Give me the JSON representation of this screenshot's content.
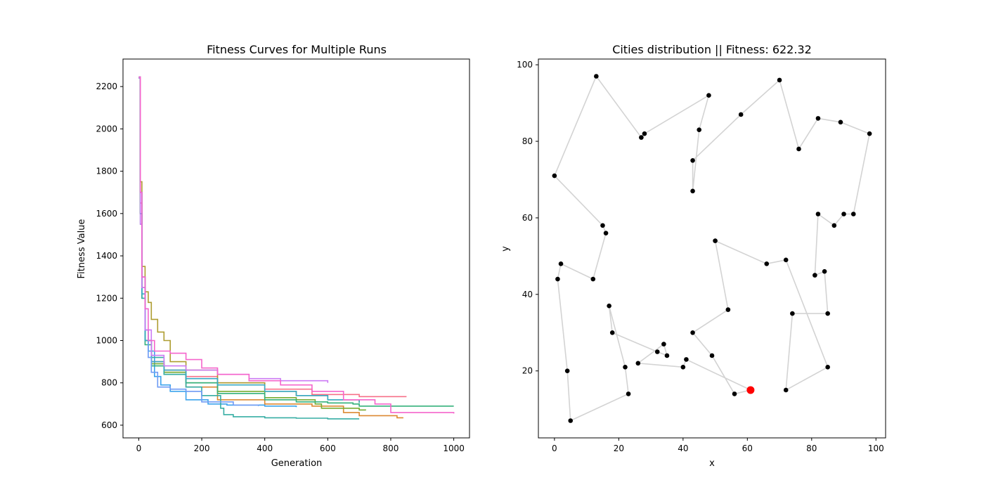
{
  "chart_data": [
    {
      "type": "line",
      "title": "Fitness Curves for Multiple Runs",
      "xlabel": "Generation",
      "ylabel": "Fitness Value",
      "xlim": [
        -50,
        1050
      ],
      "ylim": [
        540,
        2330
      ],
      "xticks": [
        0,
        200,
        400,
        600,
        800,
        1000
      ],
      "yticks": [
        600,
        800,
        1000,
        1200,
        1400,
        1600,
        1800,
        2000,
        2200
      ],
      "grid": false,
      "series": [
        {
          "color": "#3ba3ec",
          "x": [
            0,
            5,
            10,
            20,
            30,
            50,
            70,
            100,
            150,
            220,
            280,
            400,
            500
          ],
          "y": [
            2245,
            1700,
            1300,
            1050,
            950,
            830,
            790,
            760,
            720,
            700,
            695,
            690,
            685
          ]
        },
        {
          "color": "#f77189",
          "x": [
            0,
            5,
            10,
            20,
            40,
            80,
            150,
            250,
            400,
            550,
            700,
            850
          ],
          "y": [
            2240,
            1650,
            1250,
            1000,
            900,
            860,
            830,
            800,
            770,
            745,
            735,
            735
          ]
        },
        {
          "color": "#dc8932",
          "x": [
            0,
            5,
            10,
            20,
            40,
            80,
            150,
            250,
            400,
            550,
            650,
            700,
            820,
            840
          ],
          "y": [
            2240,
            1600,
            1300,
            1000,
            900,
            850,
            780,
            720,
            700,
            690,
            660,
            645,
            635,
            635
          ]
        },
        {
          "color": "#ae9d31",
          "x": [
            0,
            5,
            10,
            20,
            30,
            40,
            60,
            80,
            100,
            150,
            250,
            400,
            500,
            600,
            700
          ],
          "y": [
            2245,
            1750,
            1350,
            1230,
            1180,
            1100,
            1040,
            1000,
            900,
            860,
            800,
            760,
            740,
            720,
            705
          ]
        },
        {
          "color": "#77ab31",
          "x": [
            0,
            5,
            10,
            20,
            40,
            80,
            150,
            250,
            400,
            500,
            560,
            580,
            700,
            720
          ],
          "y": [
            2240,
            1600,
            1250,
            1000,
            890,
            850,
            800,
            760,
            730,
            720,
            700,
            680,
            672,
            670
          ]
        },
        {
          "color": "#33b07a",
          "x": [
            0,
            5,
            10,
            20,
            40,
            80,
            150,
            250,
            400,
            500,
            600,
            680,
            700,
            1000
          ],
          "y": [
            2240,
            1600,
            1200,
            980,
            880,
            840,
            800,
            750,
            720,
            710,
            705,
            700,
            690,
            690
          ]
        },
        {
          "color": "#36ada4",
          "x": [
            0,
            5,
            10,
            20,
            40,
            80,
            150,
            200,
            260,
            270,
            300,
            400,
            500,
            600,
            700
          ],
          "y": [
            2240,
            1550,
            1200,
            1000,
            920,
            840,
            780,
            740,
            680,
            650,
            640,
            635,
            633,
            630,
            630
          ]
        },
        {
          "color": "#38a9c5",
          "x": [
            0,
            5,
            10,
            20,
            40,
            80,
            150,
            250,
            400,
            500,
            600,
            700
          ],
          "y": [
            2240,
            1600,
            1220,
            1000,
            900,
            860,
            820,
            790,
            760,
            740,
            720,
            705
          ]
        },
        {
          "color": "#6e9bf4",
          "x": [
            0,
            5,
            10,
            20,
            30,
            40,
            60,
            100,
            150,
            200,
            300,
            380
          ],
          "y": [
            2245,
            1700,
            1300,
            1050,
            920,
            850,
            780,
            770,
            760,
            710,
            695,
            690
          ]
        },
        {
          "color": "#cc7af4",
          "x": [
            0,
            5,
            10,
            20,
            40,
            80,
            150,
            250,
            350,
            450,
            600
          ],
          "y": [
            2240,
            1550,
            1250,
            1050,
            930,
            880,
            860,
            840,
            820,
            810,
            800
          ]
        },
        {
          "color": "#f565cc",
          "x": [
            0,
            5,
            10,
            20,
            30,
            50,
            100,
            150,
            200,
            250,
            350,
            450,
            550,
            650,
            750,
            800,
            1000
          ],
          "y": [
            2245,
            1700,
            1300,
            1150,
            1000,
            950,
            940,
            910,
            870,
            840,
            810,
            790,
            760,
            720,
            700,
            660,
            655
          ]
        }
      ]
    },
    {
      "type": "scatter",
      "title": "Cities distribution || Fitness: 622.32",
      "xlabel": "x",
      "ylabel": "y",
      "xlim": [
        -5,
        103
      ],
      "ylim": [
        2.5,
        101.5
      ],
      "xticks": [
        0,
        20,
        40,
        60,
        80,
        100
      ],
      "yticks": [
        20,
        40,
        60,
        80,
        100
      ],
      "grid": false,
      "route_color": "#d3d3d3",
      "city_color": "#000000",
      "start_color": "#ff0000",
      "start": [
        61,
        15
      ],
      "route": [
        [
          61,
          15
        ],
        [
          56,
          14
        ],
        [
          49,
          24
        ],
        [
          43,
          30
        ],
        [
          54,
          36
        ],
        [
          50,
          54
        ],
        [
          66,
          48
        ],
        [
          72,
          49
        ],
        [
          85,
          21
        ],
        [
          72,
          15
        ],
        [
          74,
          35
        ],
        [
          85,
          35
        ],
        [
          84,
          46
        ],
        [
          81,
          45
        ],
        [
          82,
          61
        ],
        [
          87,
          58
        ],
        [
          90,
          61
        ],
        [
          93,
          61
        ],
        [
          98,
          82
        ],
        [
          89,
          85
        ],
        [
          82,
          86
        ],
        [
          76,
          78
        ],
        [
          70,
          96
        ],
        [
          58,
          87
        ],
        [
          43,
          75
        ],
        [
          43,
          67
        ],
        [
          45,
          83
        ],
        [
          48,
          92
        ],
        [
          28,
          82
        ],
        [
          27,
          81
        ],
        [
          13,
          97
        ],
        [
          0,
          71
        ],
        [
          15,
          58
        ],
        [
          16,
          56
        ],
        [
          12,
          44
        ],
        [
          2,
          48
        ],
        [
          1,
          44
        ],
        [
          4,
          20
        ],
        [
          5,
          7
        ],
        [
          23,
          14
        ],
        [
          22,
          21
        ],
        [
          17,
          37
        ],
        [
          18,
          30
        ],
        [
          32,
          25
        ],
        [
          35,
          24
        ],
        [
          34,
          27
        ],
        [
          26,
          22
        ],
        [
          40,
          21
        ],
        [
          41,
          23
        ],
        [
          61,
          15
        ]
      ]
    }
  ]
}
